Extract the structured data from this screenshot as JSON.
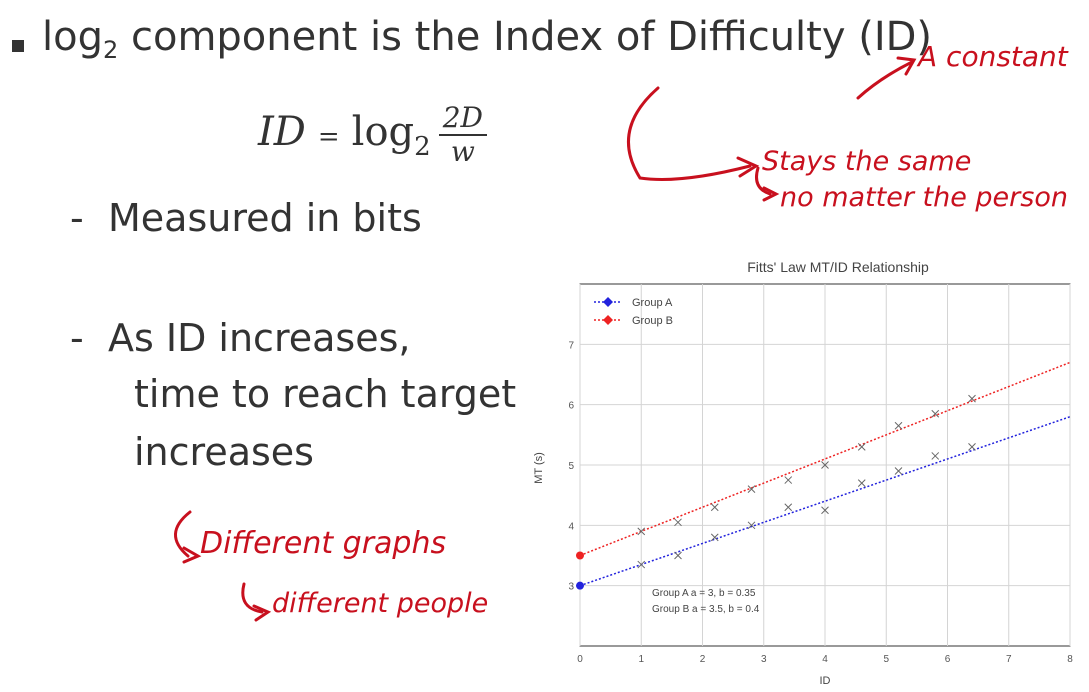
{
  "bullet_point": {
    "prefix": "log",
    "subscript": "2",
    "rest": " component is the Index of Difficulty (ID)"
  },
  "formula": {
    "lhs": "ID",
    "equals": "=",
    "log_word": "log",
    "log_base": "2",
    "numerator": "2D",
    "denominator": "w"
  },
  "sub_items": [
    {
      "dash": "-",
      "text": "Measured in bits"
    },
    {
      "dash": "-",
      "lines": [
        "As ID increases,",
        "time to reach target",
        "increases"
      ]
    }
  ],
  "annotations": {
    "constant": "A constant",
    "stays": "Stays the same",
    "no_matter": "no matter the person",
    "diff_graphs": "Different graphs",
    "diff_people": "different people"
  },
  "colors": {
    "ink": "#c8101e",
    "group_a": "#2222dd",
    "group_b": "#ee2222"
  },
  "chart_data": {
    "type": "line",
    "title": "Fitts' Law MT/ID Relationship",
    "xlabel": "ID",
    "ylabel": "MT (s)",
    "xlim": [
      0,
      8
    ],
    "ylim": [
      2,
      8
    ],
    "x_ticks": [
      0,
      1,
      2,
      3,
      4,
      5,
      6,
      7,
      8
    ],
    "y_ticks": [
      3,
      4,
      5,
      6,
      7
    ],
    "grid": true,
    "legend": "top-left",
    "series": [
      {
        "name": "Group A",
        "a": 3,
        "b": 0.35,
        "line_x": [
          0,
          8
        ],
        "points": [
          [
            1,
            3.35
          ],
          [
            1.6,
            3.5
          ],
          [
            2.2,
            3.8
          ],
          [
            2.8,
            4.0
          ],
          [
            3.4,
            4.3
          ],
          [
            4.0,
            4.25
          ],
          [
            4.6,
            4.7
          ],
          [
            5.2,
            4.9
          ],
          [
            5.8,
            5.15
          ],
          [
            6.4,
            5.3
          ]
        ]
      },
      {
        "name": "Group B",
        "a": 3.5,
        "b": 0.4,
        "line_x": [
          0,
          8
        ],
        "points": [
          [
            1,
            3.9
          ],
          [
            1.6,
            4.05
          ],
          [
            2.2,
            4.3
          ],
          [
            2.8,
            4.6
          ],
          [
            3.4,
            4.75
          ],
          [
            4.0,
            5.0
          ],
          [
            4.6,
            5.3
          ],
          [
            5.2,
            5.65
          ],
          [
            5.8,
            5.85
          ],
          [
            6.4,
            6.1
          ]
        ]
      }
    ],
    "annotations": [
      "Group A a = 3,   b = 0.35",
      "Group B a = 3.5, b = 0.4"
    ]
  }
}
